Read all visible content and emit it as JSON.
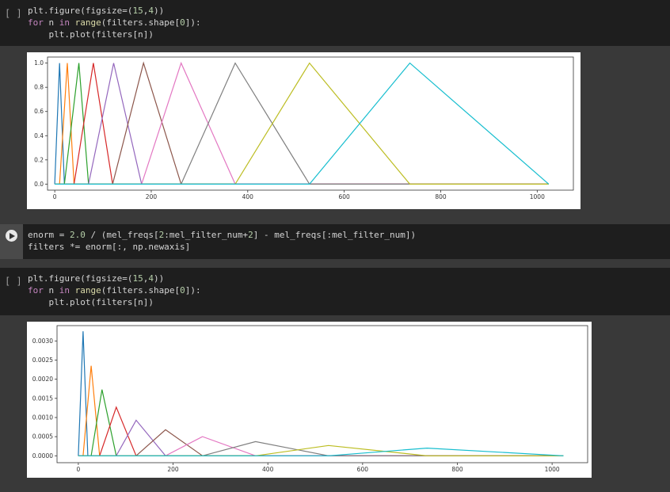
{
  "cell1": {
    "prompt": "[ ]",
    "lines": [
      "plt.figure(figsize=(15,4))",
      "for n in range(filters.shape[0]):",
      "    plt.plot(filters[n])"
    ]
  },
  "cell2": {
    "lines": [
      "enorm = 2.0 / (mel_freqs[2:mel_filter_num+2] - mel_freqs[:mel_filter_num])",
      "filters *= enorm[:, np.newaxis]"
    ]
  },
  "cell3": {
    "prompt": "[ ]",
    "lines": [
      "plt.figure(figsize=(15,4))",
      "for n in range(filters.shape[0]):",
      "    plt.plot(filters[n])"
    ]
  },
  "chart_data": [
    {
      "type": "line",
      "xlim": [
        -15,
        1075
      ],
      "ylim": [
        -0.05,
        1.05
      ],
      "xticks": [
        "0",
        "200",
        "400",
        "600",
        "800",
        "1000"
      ],
      "yticks": [
        "0.0",
        "0.2",
        "0.4",
        "0.6",
        "0.8",
        "1.0"
      ],
      "ytick_values": [
        0,
        0.2,
        0.4,
        0.6,
        0.8,
        1.0
      ],
      "xtick_values": [
        0,
        200,
        400,
        600,
        800,
        1000
      ],
      "colors": [
        "#1f77b4",
        "#ff7f0e",
        "#2ca02c",
        "#d62728",
        "#9467bd",
        "#8c564b",
        "#e377c2",
        "#7f7f7f",
        "#bcbd22",
        "#17becf"
      ],
      "series": [
        {
          "x": [
            0,
            10,
            20,
            1024
          ],
          "y": [
            0,
            1,
            0,
            0
          ]
        },
        {
          "x": [
            0,
            10,
            26,
            40,
            1024
          ],
          "y": [
            0,
            0,
            1,
            0,
            0
          ]
        },
        {
          "x": [
            0,
            20,
            50,
            70,
            1024
          ],
          "y": [
            0,
            0,
            1,
            0,
            0
          ]
        },
        {
          "x": [
            0,
            40,
            80,
            120,
            1024
          ],
          "y": [
            0,
            0,
            1,
            0,
            0
          ]
        },
        {
          "x": [
            0,
            70,
            122,
            180,
            1024
          ],
          "y": [
            0,
            0,
            1,
            0,
            0
          ]
        },
        {
          "x": [
            0,
            120,
            184,
            262,
            1024
          ],
          "y": [
            0,
            0,
            1,
            0,
            0
          ]
        },
        {
          "x": [
            0,
            180,
            262,
            374,
            1024
          ],
          "y": [
            0,
            0,
            1,
            0,
            0
          ]
        },
        {
          "x": [
            0,
            262,
            374,
            528,
            1024
          ],
          "y": [
            0,
            0,
            1,
            0,
            0
          ]
        },
        {
          "x": [
            0,
            374,
            528,
            736,
            1024
          ],
          "y": [
            0,
            0,
            1,
            0,
            0
          ]
        },
        {
          "x": [
            0,
            528,
            736,
            1024
          ],
          "y": [
            0,
            0,
            1,
            0
          ]
        }
      ]
    },
    {
      "type": "line",
      "xlim": [
        -45,
        1075
      ],
      "ylim": [
        -0.00018,
        0.0034
      ],
      "xticks": [
        "0",
        "200",
        "400",
        "600",
        "800",
        "1000"
      ],
      "yticks": [
        "0.0000",
        "0.0005",
        "0.0010",
        "0.0015",
        "0.0020",
        "0.0025",
        "0.0030"
      ],
      "ytick_values": [
        0,
        0.0005,
        0.001,
        0.0015,
        0.002,
        0.0025,
        0.003
      ],
      "xtick_values": [
        0,
        200,
        400,
        600,
        800,
        1000
      ],
      "colors": [
        "#1f77b4",
        "#ff7f0e",
        "#2ca02c",
        "#d62728",
        "#9467bd",
        "#8c564b",
        "#e377c2",
        "#7f7f7f",
        "#bcbd22",
        "#17becf"
      ],
      "series": [
        {
          "x": [
            0,
            10,
            20,
            1024
          ],
          "y": [
            0,
            0.00325,
            0,
            0
          ]
        },
        {
          "x": [
            0,
            10,
            27,
            45,
            1024
          ],
          "y": [
            0,
            0,
            0.00235,
            0,
            0
          ]
        },
        {
          "x": [
            0,
            27,
            50,
            80,
            1024
          ],
          "y": [
            0,
            0,
            0.00173,
            0,
            0
          ]
        },
        {
          "x": [
            0,
            45,
            80,
            122,
            1024
          ],
          "y": [
            0,
            0,
            0.00127,
            0,
            0
          ]
        },
        {
          "x": [
            0,
            80,
            122,
            184,
            1024
          ],
          "y": [
            0,
            0,
            0.00093,
            0,
            0
          ]
        },
        {
          "x": [
            0,
            122,
            184,
            262,
            1024
          ],
          "y": [
            0,
            0,
            0.00068,
            0,
            0
          ]
        },
        {
          "x": [
            0,
            184,
            262,
            374,
            1024
          ],
          "y": [
            0,
            0,
            0.0005,
            0,
            0
          ]
        },
        {
          "x": [
            0,
            262,
            374,
            528,
            1024
          ],
          "y": [
            0,
            0,
            0.00037,
            0,
            0
          ]
        },
        {
          "x": [
            0,
            374,
            528,
            736,
            1024
          ],
          "y": [
            0,
            0,
            0.00027,
            0,
            0
          ]
        },
        {
          "x": [
            0,
            528,
            736,
            1024
          ],
          "y": [
            0,
            0,
            0.0002,
            0
          ]
        }
      ]
    }
  ]
}
